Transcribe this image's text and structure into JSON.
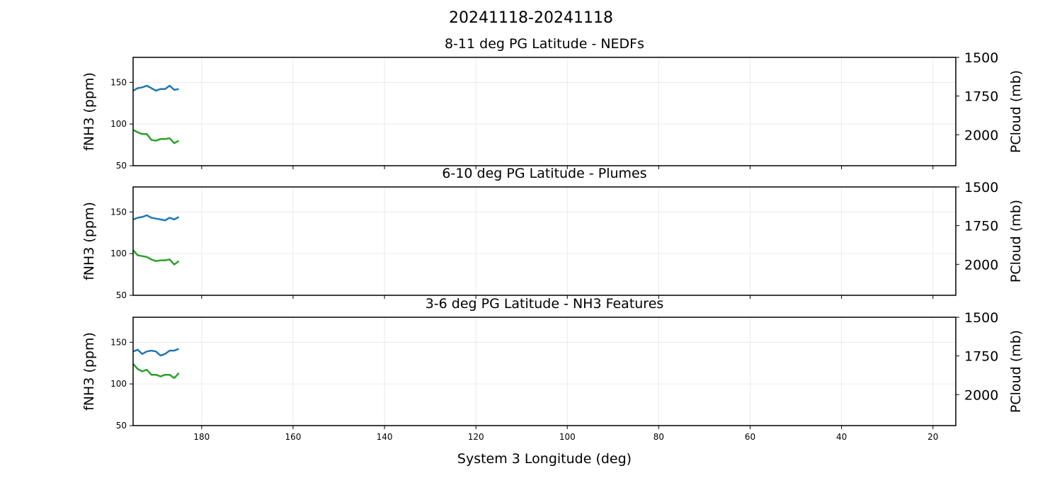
{
  "suptitle": "20241118-20241118",
  "chart_data": [
    {
      "type": "line",
      "title": "8-11 deg PG Latitude - NEDFs",
      "xlabel": "",
      "ylabel": "fNH3 (ppm)",
      "y2label": "PCloud (mb)",
      "xlim": [
        195,
        15
      ],
      "ylim": [
        50,
        180
      ],
      "y2lim": [
        1500,
        2200
      ],
      "xticks": [
        "180",
        "160",
        "140",
        "120",
        "100",
        "80",
        "60",
        "40",
        "20"
      ],
      "yticks": [
        "50",
        "100",
        "150"
      ],
      "y2ticks": [
        "1500",
        "1750",
        "2000"
      ],
      "grid": true,
      "series": [
        {
          "axis": "left",
          "color": "#1f77b4",
          "x": [
            195,
            194,
            193,
            192,
            191,
            190,
            189,
            188,
            187,
            186,
            185
          ],
          "y": [
            140,
            143,
            144,
            146,
            143,
            140,
            142,
            142,
            146,
            141,
            142
          ]
        },
        {
          "axis": "left",
          "color": "#2ca02c",
          "x": [
            195,
            194,
            193,
            192,
            191,
            190,
            189,
            188,
            187,
            186,
            185
          ],
          "y": [
            93,
            90,
            88,
            88,
            81,
            80,
            82,
            82,
            83,
            77,
            80
          ]
        }
      ]
    },
    {
      "type": "line",
      "title": "6-10 deg PG Latitude - Plumes",
      "xlabel": "",
      "ylabel": "fNH3 (ppm)",
      "y2label": "PCloud (mb)",
      "xlim": [
        195,
        15
      ],
      "ylim": [
        50,
        180
      ],
      "y2lim": [
        1500,
        2200
      ],
      "xticks": [
        "180",
        "160",
        "140",
        "120",
        "100",
        "80",
        "60",
        "40",
        "20"
      ],
      "yticks": [
        "50",
        "100",
        "150"
      ],
      "y2ticks": [
        "1500",
        "1750",
        "2000"
      ],
      "grid": true,
      "series": [
        {
          "axis": "left",
          "color": "#1f77b4",
          "x": [
            195,
            194,
            193,
            192,
            191,
            190,
            189,
            188,
            187,
            186,
            185
          ],
          "y": [
            141,
            143,
            144,
            146,
            143,
            142,
            141,
            140,
            143,
            141,
            144
          ]
        },
        {
          "axis": "left",
          "color": "#2ca02c",
          "x": [
            195,
            194,
            193,
            192,
            191,
            190,
            189,
            188,
            187,
            186,
            185
          ],
          "y": [
            104,
            98,
            97,
            96,
            93,
            91,
            92,
            92,
            93,
            87,
            91
          ]
        }
      ]
    },
    {
      "type": "line",
      "title": "3-6 deg PG Latitude - NH3 Features",
      "xlabel": "System 3 Longitude (deg)",
      "ylabel": "fNH3 (ppm)",
      "y2label": "PCloud (mb)",
      "xlim": [
        195,
        15
      ],
      "ylim": [
        50,
        180
      ],
      "y2lim": [
        1500,
        2200
      ],
      "xticks": [
        "180",
        "160",
        "140",
        "120",
        "100",
        "80",
        "60",
        "40",
        "20"
      ],
      "yticks": [
        "50",
        "100",
        "150"
      ],
      "y2ticks": [
        "1500",
        "1750",
        "2000"
      ],
      "grid": true,
      "series": [
        {
          "axis": "left",
          "color": "#1f77b4",
          "x": [
            195,
            194,
            193,
            192,
            191,
            190,
            189,
            188,
            187,
            186,
            185
          ],
          "y": [
            139,
            141,
            136,
            139,
            140,
            139,
            134,
            136,
            140,
            140,
            142
          ]
        },
        {
          "axis": "left",
          "color": "#2ca02c",
          "x": [
            195,
            194,
            193,
            192,
            191,
            190,
            189,
            188,
            187,
            186,
            185
          ],
          "y": [
            124,
            118,
            115,
            117,
            111,
            111,
            109,
            111,
            111,
            107,
            113
          ]
        }
      ]
    }
  ]
}
